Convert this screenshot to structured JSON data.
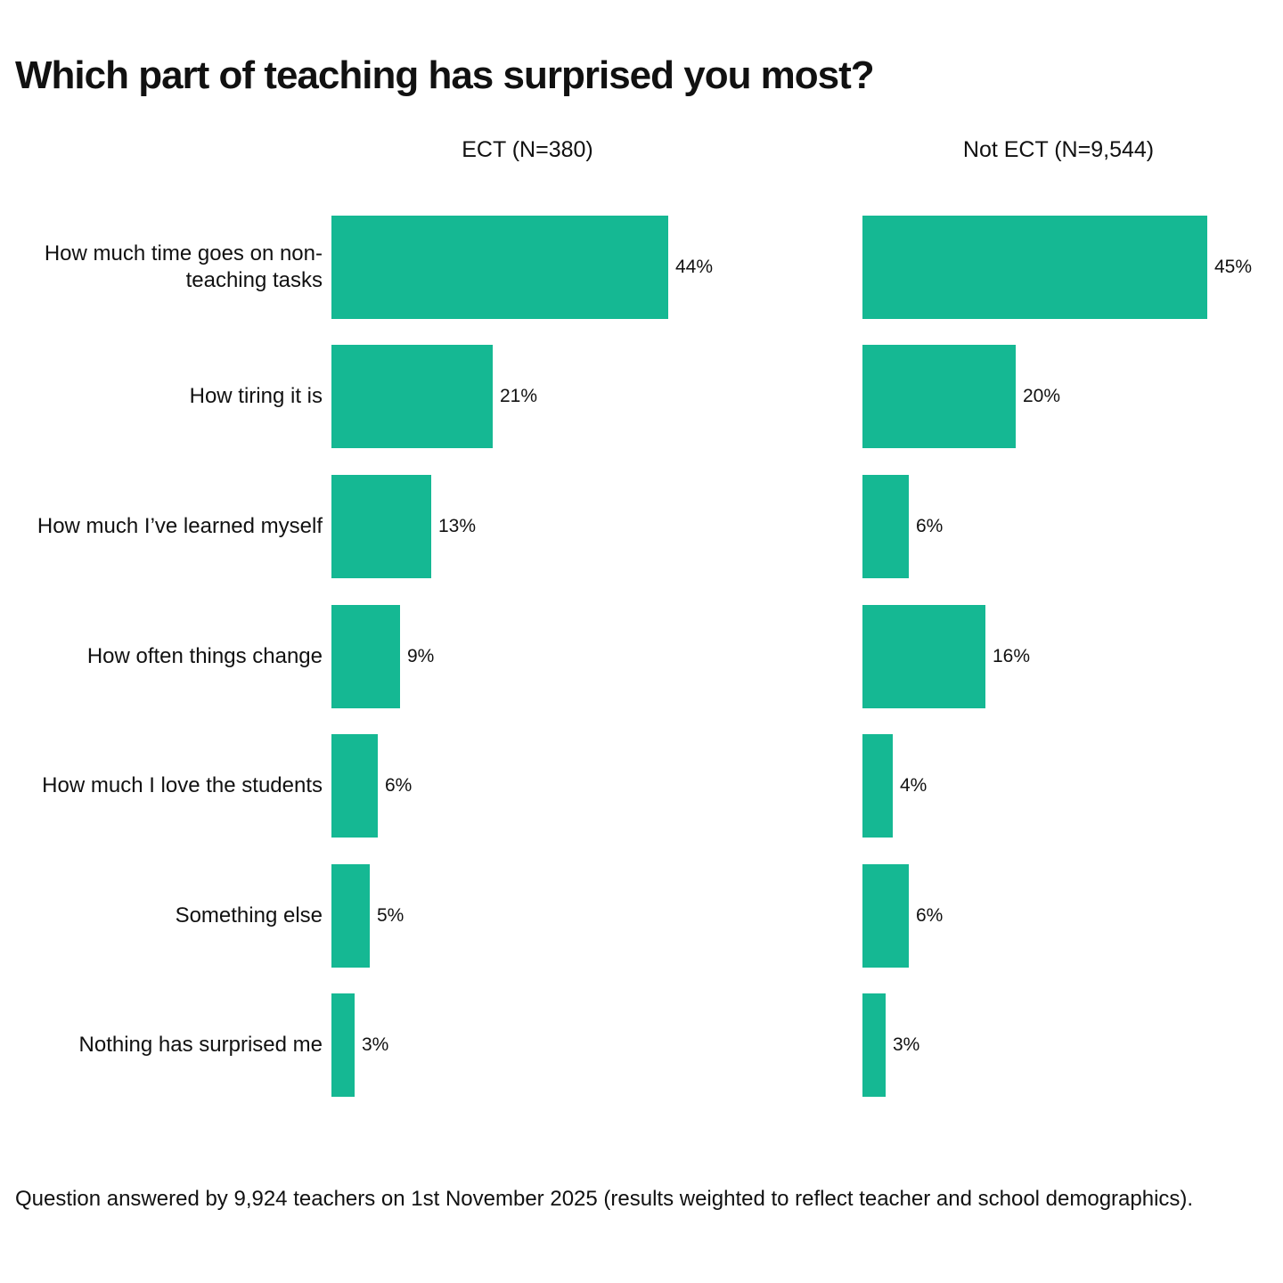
{
  "title": "Which part of teaching has surprised you most?",
  "footer": "Question answered by 9,924 teachers on 1st November 2025 (results weighted to reflect teacher and school demographics).",
  "colors": {
    "bar": "#15B893",
    "text": "#111111",
    "background": "#FFFFFF"
  },
  "chart_data": {
    "type": "bar",
    "orientation": "horizontal",
    "title": "Which part of teaching has surprised you most?",
    "unit": "%",
    "xlim": [
      0,
      50
    ],
    "grid": false,
    "value_labels": true,
    "legend_position": "column-headers-above-each-panel",
    "categories": [
      "How much time goes on non-teaching tasks",
      "How tiring it is",
      "How much I’ve learned myself",
      "How often things change",
      "How much I love the students",
      "Something else",
      "Nothing has surprised me"
    ],
    "series": [
      {
        "name": "ECT (N=380)",
        "values": [
          44,
          21,
          13,
          9,
          6,
          5,
          3
        ]
      },
      {
        "name": "Not ECT (N=9,544)",
        "values": [
          45,
          20,
          6,
          16,
          4,
          6,
          3
        ]
      }
    ]
  }
}
